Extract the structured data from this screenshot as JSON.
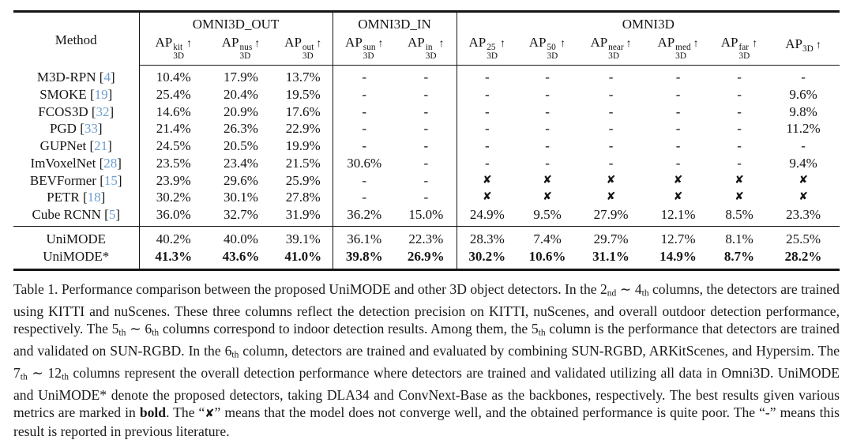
{
  "colors": {
    "citation_link": "#6d9dcf",
    "text": "#141414"
  },
  "table": {
    "method_header": "Method",
    "up_arrow": "↑",
    "x_mark": "✘",
    "dash": "-",
    "groups": [
      {
        "label": "OMNI3D_OUT",
        "span": 3
      },
      {
        "label": "OMNI3D_IN",
        "span": 2
      },
      {
        "label": "OMNI3D",
        "span": 6
      }
    ],
    "columns": [
      {
        "sup": "kit",
        "sub": "3D"
      },
      {
        "sup": "nus",
        "sub": "3D"
      },
      {
        "sup": "out",
        "sub": "3D"
      },
      {
        "sup": "sun",
        "sub": "3D"
      },
      {
        "sup": "in",
        "sub": "3D"
      },
      {
        "sup": "25",
        "sub": "3D"
      },
      {
        "sup": "50",
        "sub": "3D"
      },
      {
        "sup": "near",
        "sub": "3D"
      },
      {
        "sup": "med",
        "sub": "3D"
      },
      {
        "sup": "far",
        "sub": "3D"
      },
      {
        "sup": "",
        "sub": "3D"
      }
    ],
    "rows": [
      {
        "method": "M3D-RPN",
        "cite": "4",
        "bold": false,
        "values": [
          "10.4%",
          "17.9%",
          "13.7%",
          "-",
          "-",
          "-",
          "-",
          "-",
          "-",
          "-",
          "-"
        ]
      },
      {
        "method": "SMOKE",
        "cite": "19",
        "bold": false,
        "values": [
          "25.4%",
          "20.4%",
          "19.5%",
          "-",
          "-",
          "-",
          "-",
          "-",
          "-",
          "-",
          "9.6%"
        ]
      },
      {
        "method": "FCOS3D",
        "cite": "32",
        "bold": false,
        "values": [
          "14.6%",
          "20.9%",
          "17.6%",
          "-",
          "-",
          "-",
          "-",
          "-",
          "-",
          "-",
          "9.8%"
        ]
      },
      {
        "method": "PGD",
        "cite": "33",
        "bold": false,
        "values": [
          "21.4%",
          "26.3%",
          "22.9%",
          "-",
          "-",
          "-",
          "-",
          "-",
          "-",
          "-",
          "11.2%"
        ]
      },
      {
        "method": "GUPNet",
        "cite": "21",
        "bold": false,
        "values": [
          "24.5%",
          "20.5%",
          "19.9%",
          "-",
          "-",
          "-",
          "-",
          "-",
          "-",
          "-",
          "-"
        ]
      },
      {
        "method": "ImVoxelNet",
        "cite": "28",
        "bold": false,
        "values": [
          "23.5%",
          "23.4%",
          "21.5%",
          "30.6%",
          "-",
          "-",
          "-",
          "-",
          "-",
          "-",
          "9.4%"
        ]
      },
      {
        "method": "BEVFormer",
        "cite": "15",
        "bold": false,
        "values": [
          "23.9%",
          "29.6%",
          "25.9%",
          "-",
          "-",
          "✘",
          "✘",
          "✘",
          "✘",
          "✘",
          "✘"
        ]
      },
      {
        "method": "PETR",
        "cite": "18",
        "bold": false,
        "values": [
          "30.2%",
          "30.1%",
          "27.8%",
          "-",
          "-",
          "✘",
          "✘",
          "✘",
          "✘",
          "✘",
          "✘"
        ]
      },
      {
        "method": "Cube RCNN",
        "cite": "5",
        "bold": false,
        "values": [
          "36.0%",
          "32.7%",
          "31.9%",
          "36.2%",
          "15.0%",
          "24.9%",
          "9.5%",
          "27.9%",
          "12.1%",
          "8.5%",
          "23.3%"
        ]
      },
      {
        "method": "UniMODE",
        "cite": "",
        "bold": false,
        "values": [
          "40.2%",
          "40.0%",
          "39.1%",
          "36.1%",
          "22.3%",
          "28.3%",
          "7.4%",
          "29.7%",
          "12.7%",
          "8.1%",
          "25.5%"
        ]
      },
      {
        "method": "UniMODE*",
        "cite": "",
        "bold": true,
        "values": [
          "41.3%",
          "43.6%",
          "41.0%",
          "39.8%",
          "26.9%",
          "30.2%",
          "10.6%",
          "31.1%",
          "14.9%",
          "8.7%",
          "28.2%"
        ]
      }
    ]
  },
  "caption": {
    "segments": [
      {
        "type": "text",
        "text": "Table 1.  Performance comparison between the proposed UniMODE and other 3D object detectors.  In the 2"
      },
      {
        "type": "sub",
        "text": "nd"
      },
      {
        "type": "text",
        "text": " ∼ 4"
      },
      {
        "type": "sub",
        "text": "th"
      },
      {
        "type": "text",
        "text": " columns, the detectors are trained using KITTI and nuScenes.  These three columns reflect the detection precision on KITTI, nuScenes, and overall outdoor detection performance, respectively.  The 5"
      },
      {
        "type": "sub",
        "text": "th"
      },
      {
        "type": "text",
        "text": " ∼ 6"
      },
      {
        "type": "sub",
        "text": "th"
      },
      {
        "type": "text",
        "text": " columns correspond to indoor detection results.  Among them, the 5"
      },
      {
        "type": "sub",
        "text": "th"
      },
      {
        "type": "text",
        "text": " column is the performance that detectors are trained and validated on SUN-RGBD. In the 6"
      },
      {
        "type": "sub",
        "text": "th"
      },
      {
        "type": "text",
        "text": " column, detectors are trained and evaluated by combining SUN-RGBD, ARKitScenes, and Hypersim.  The 7"
      },
      {
        "type": "sub",
        "text": "th"
      },
      {
        "type": "text",
        "text": " ∼ 12"
      },
      {
        "type": "sub",
        "text": "th"
      },
      {
        "type": "text",
        "text": " columns represent the overall detection performance where detectors are trained and validated utilizing all data in Omni3D. UniMODE and UniMODE* denote the proposed detectors, taking DLA34 and ConvNext-Base as the backbones, respectively.  The best results given various metrics are marked in "
      },
      {
        "type": "bold",
        "text": "bold"
      },
      {
        "type": "text",
        "text": ".  The “"
      },
      {
        "type": "bold",
        "text": "✘"
      },
      {
        "type": "text",
        "text": "” means that the model does not converge well, and the obtained performance is quite poor.  The “-” means this result is reported in previous literature."
      }
    ]
  }
}
